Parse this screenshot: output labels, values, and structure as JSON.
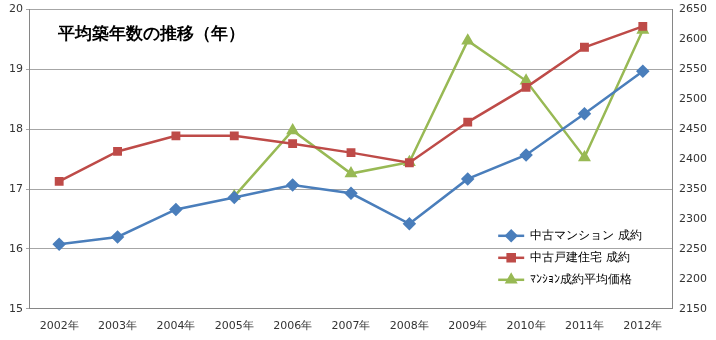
{
  "chart_data": {
    "type": "line",
    "title": "平均築年数の推移（年）",
    "categories": [
      "2002年",
      "2003年",
      "2004年",
      "2005年",
      "2006年",
      "2007年",
      "2008年",
      "2009年",
      "2010年",
      "2011年",
      "2012年"
    ],
    "series": [
      {
        "name": "中古マンション 成約",
        "color": "#4a7ebb",
        "marker": "diamond",
        "values": [
          16.08,
          16.2,
          16.66,
          16.86,
          17.07,
          16.93,
          16.42,
          17.17,
          17.57,
          18.26,
          18.97
        ]
      },
      {
        "name": "中古戸建住宅 成約",
        "color": "#be4b48",
        "marker": "square",
        "values": [
          17.13,
          17.63,
          17.89,
          17.89,
          17.76,
          17.61,
          17.44,
          18.12,
          18.7,
          19.37,
          19.72
        ]
      },
      {
        "name": "ﾏﾝｼｮﾝ成約平均価格",
        "color": "#98b954",
        "marker": "triangle",
        "axis": "y2",
        "values": [
          null,
          null,
          null,
          2338,
          2448,
          2376,
          2395,
          2598,
          2531,
          2403,
          2616
        ]
      }
    ],
    "ylim": [
      15,
      20
    ],
    "yticks": [
      15,
      16,
      17,
      18,
      19,
      20
    ],
    "y2lim": [
      2150,
      2650
    ],
    "y2ticks": [
      2150,
      2200,
      2250,
      2300,
      2350,
      2400,
      2450,
      2500,
      2550,
      2600,
      2650
    ],
    "grid": true,
    "legend": "lower right"
  }
}
